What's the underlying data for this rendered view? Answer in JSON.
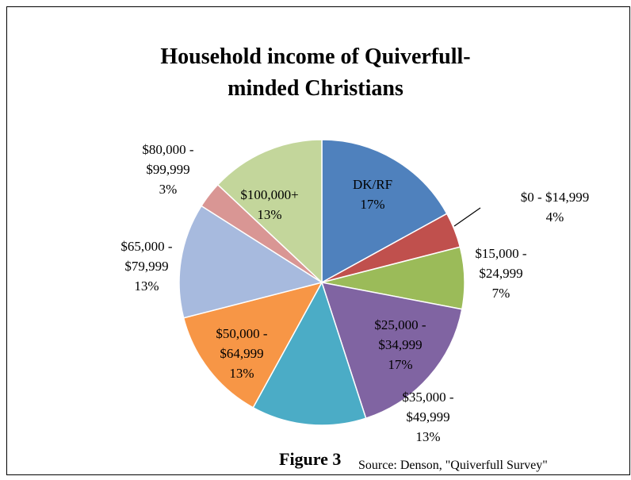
{
  "chart_data": {
    "type": "pie",
    "title": "Household income of Quiverfull-minded Christians",
    "categories": [
      "DK/RF",
      "$0 - $14,999",
      "$15,000 - $24,999",
      "$25,000 - $34,999",
      "$35,000 - $49,999",
      "$50,000 - $64,999",
      "$65,000 - $79,999",
      "$80,000 - $99,999",
      "$100,000+"
    ],
    "values": [
      17,
      4,
      7,
      17,
      13,
      13,
      13,
      3,
      13
    ],
    "value_labels": [
      "17%",
      "4%",
      "7%",
      "17%",
      "13%",
      "13%",
      "13%",
      "3%",
      "13%"
    ],
    "colors": [
      "#4f81bd",
      "#c0504d",
      "#9bbb59",
      "#8064a2",
      "#4bacc6",
      "#f79646",
      "#a7bade",
      "#d99694",
      "#c3d69b"
    ],
    "annotations": [
      "Figure 3",
      "Source: Denson, \"Quiverfull Survey\""
    ]
  }
}
